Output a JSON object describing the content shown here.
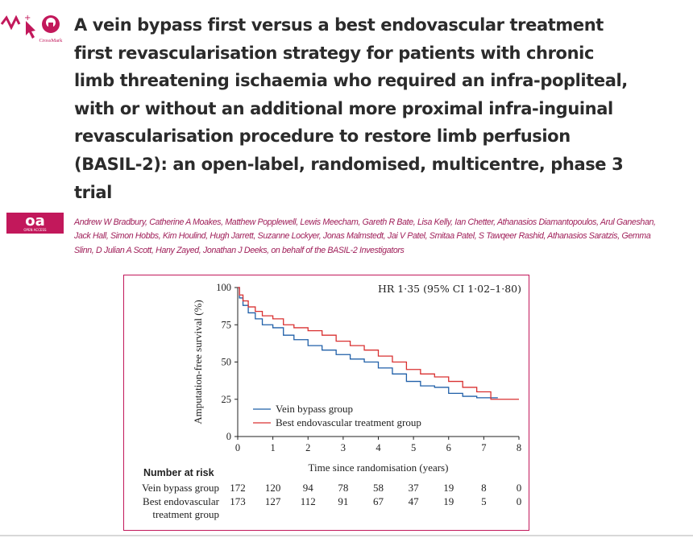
{
  "article": {
    "title": "A vein bypass first versus a best endovascular treatment first revascularisation strategy for patients with chronic limb threatening ischaemia who required an infra-popliteal, with or without an additional more proximal infra-inguinal revascularisation procedure to restore limb perfusion (BASIL-2): an open-label, randomised, multicentre, phase 3 trial",
    "authors": "Andrew W Bradbury, Catherine A Moakes, Matthew Popplewell, Lewis Meecham, Gareth R Bate, Lisa Kelly, Ian Chetter, Athanasios Diamantopoulos, Arul Ganeshan, Jack Hall, Simon Hobbs, Kim Houlind, Hugh Jarrett, Suzanne Lockyer, Jonas Malmstedt, Jai V Patel, Smitaa Patel, S Tawqeer Rashid, Athanasios Saratzis, Gemma Slinn, D Julian A Scott, Hany Zayed, Jonathan J Deeks, on behalf of the BASIL-2 Investigators",
    "crossmark_label": "CrossMark",
    "oa_label": "oa",
    "oa_sub": "OPEN ACCESS"
  },
  "colors": {
    "title": "#2b2b2b",
    "authors": "#a0205a",
    "frame": "#c2185b",
    "vein_bypass": "#1f5fa8",
    "endovascular": "#d93030"
  },
  "chart_data": {
    "type": "line",
    "annotation": "HR 1·35 (95% CI 1·02–1·80)",
    "xlabel": "Time since randomisation (years)",
    "ylabel": "Amputation-free survival (%)",
    "xlim": [
      0,
      8
    ],
    "ylim": [
      0,
      100
    ],
    "x_ticks": [
      "0",
      "1",
      "2",
      "3",
      "4",
      "5",
      "6",
      "7",
      "8"
    ],
    "y_ticks": [
      "0",
      "25",
      "50",
      "75",
      "100"
    ],
    "legend_position": "bottom-left",
    "series": [
      {
        "name": "Vein bypass group",
        "color": "#1f5fa8",
        "x": [
          0,
          0.05,
          0.15,
          0.3,
          0.5,
          0.7,
          1.0,
          1.3,
          1.6,
          2.0,
          2.4,
          2.8,
          3.2,
          3.6,
          4.0,
          4.4,
          4.8,
          5.2,
          5.6,
          6.0,
          6.4,
          6.8,
          7.0,
          7.4
        ],
        "y": [
          100,
          93,
          88,
          83,
          79,
          75,
          73,
          68,
          65,
          61,
          58,
          55,
          52,
          50,
          46,
          42,
          37,
          34,
          33,
          29,
          27,
          26,
          26,
          26
        ]
      },
      {
        "name": "Best endovascular treatment group",
        "color": "#d93030",
        "x": [
          0,
          0.05,
          0.15,
          0.3,
          0.5,
          0.7,
          1.0,
          1.3,
          1.6,
          2.0,
          2.4,
          2.8,
          3.2,
          3.6,
          4.0,
          4.4,
          4.8,
          5.2,
          5.6,
          6.0,
          6.4,
          6.8,
          7.2,
          7.6,
          8.0
        ],
        "y": [
          100,
          95,
          91,
          87,
          84,
          81,
          79,
          75,
          73,
          71,
          68,
          64,
          61,
          58,
          54,
          50,
          45,
          42,
          40,
          37,
          33,
          30,
          25,
          25,
          25
        ]
      }
    ]
  },
  "risk_table": {
    "heading": "Number at risk",
    "rows": [
      {
        "label": "Vein bypass group",
        "values": [
          "172",
          "120",
          "94",
          "78",
          "58",
          "37",
          "19",
          "8",
          "0"
        ]
      },
      {
        "label": "Best endovascular\ntreatment group",
        "values": [
          "173",
          "127",
          "112",
          "91",
          "67",
          "47",
          "19",
          "5",
          "0"
        ]
      }
    ]
  }
}
